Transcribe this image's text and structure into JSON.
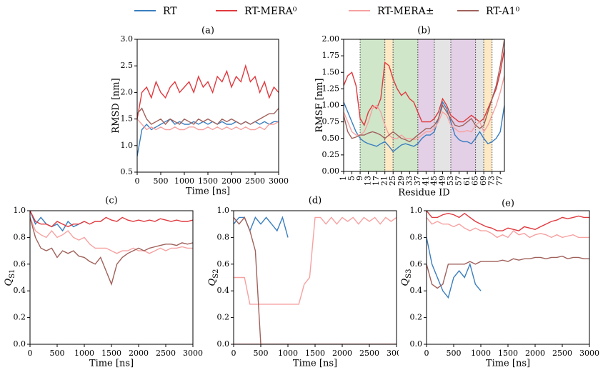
{
  "chart_data": [
    {
      "type": "line",
      "title": "(a)",
      "xlabel": "Time [ns]",
      "ylabel": "RMSD [nm]",
      "x": [
        0,
        100,
        200,
        300,
        400,
        500,
        600,
        700,
        800,
        900,
        1000,
        1100,
        1200,
        1300,
        1400,
        1500,
        1600,
        1700,
        1800,
        1900,
        2000,
        2100,
        2200,
        2300,
        2400,
        2500,
        2600,
        2700,
        2800,
        2900,
        3000
      ],
      "xlim": [
        0,
        3000
      ],
      "xticks": [
        0,
        500,
        1000,
        1500,
        2000,
        2500,
        3000
      ],
      "ylim": [
        0.5,
        3.0
      ],
      "yticks": [
        0.5,
        {
          "value": 1,
          "label": "1.0"
        },
        1.5,
        {
          "value": 2,
          "label": "2.0"
        },
        2.5,
        {
          "value": 3,
          "label": "3.0"
        }
      ],
      "series": [
        {
          "name": "RT",
          "color": "#3a7ebf",
          "values": [
            0.8,
            1.3,
            1.4,
            1.3,
            1.35,
            1.4,
            1.45,
            1.5,
            1.4,
            1.45,
            1.4,
            1.4,
            1.45,
            1.4,
            1.45,
            1.4,
            1.45,
            1.4,
            1.45,
            1.4,
            1.4,
            1.45,
            1.4,
            1.45,
            1.4,
            1.45,
            1.4,
            1.45,
            1.4,
            1.45,
            1.45
          ]
        },
        {
          "name": "RT-MERA⁰",
          "color": "#e0393e",
          "values": [
            1.5,
            2.0,
            2.1,
            1.9,
            2.2,
            2.0,
            1.9,
            2.1,
            2.2,
            2.0,
            2.1,
            2.2,
            2.0,
            2.3,
            2.1,
            2.2,
            2.0,
            2.3,
            2.2,
            2.4,
            2.1,
            2.3,
            2.2,
            2.5,
            2.2,
            2.3,
            2.0,
            2.2,
            1.9,
            2.1,
            2.0
          ]
        },
        {
          "name": "RT-MERA±",
          "color": "#f7a1a1",
          "values": [
            1.5,
            1.4,
            1.3,
            1.35,
            1.3,
            1.35,
            1.3,
            1.3,
            1.35,
            1.3,
            1.3,
            1.35,
            1.35,
            1.3,
            1.3,
            1.35,
            1.3,
            1.35,
            1.3,
            1.35,
            1.3,
            1.35,
            1.3,
            1.35,
            1.3,
            1.3,
            1.35,
            1.3,
            1.4,
            1.4,
            1.45
          ]
        },
        {
          "name": "RT-A1⁰",
          "color": "#a0615b",
          "values": [
            1.6,
            1.7,
            1.5,
            1.4,
            1.45,
            1.5,
            1.4,
            1.5,
            1.45,
            1.4,
            1.5,
            1.45,
            1.4,
            1.5,
            1.45,
            1.5,
            1.45,
            1.4,
            1.5,
            1.45,
            1.5,
            1.45,
            1.4,
            1.45,
            1.4,
            1.45,
            1.5,
            1.55,
            1.6,
            1.6,
            1.7
          ]
        }
      ]
    },
    {
      "type": "line",
      "title": "(b)",
      "xlabel": "Residue ID",
      "ylabel": "RMSF [nm]",
      "x": [
        1,
        3,
        5,
        7,
        9,
        11,
        13,
        15,
        17,
        19,
        21,
        23,
        25,
        27,
        29,
        31,
        33,
        35,
        37,
        39,
        41,
        43,
        45,
        47,
        49,
        51,
        53,
        55,
        57,
        59,
        61,
        63,
        65,
        67,
        69,
        71,
        73,
        75,
        77,
        79
      ],
      "xlim": [
        1,
        79
      ],
      "xticks": [
        1,
        5,
        9,
        13,
        17,
        21,
        25,
        29,
        33,
        37,
        41,
        45,
        49,
        53,
        57,
        61,
        65,
        69,
        73,
        77
      ],
      "rotate_xticks": true,
      "ylim": [
        0,
        2
      ],
      "yticks": [
        {
          "value": 0,
          "label": "0.00"
        },
        0.25,
        {
          "value": 0.5,
          "label": "0.50"
        },
        0.75,
        {
          "value": 1,
          "label": "1.00"
        },
        1.25,
        {
          "value": 1.5,
          "label": "1.50"
        },
        1.75,
        {
          "value": 2,
          "label": "2.00"
        }
      ],
      "bands": [
        {
          "from": 9,
          "to": 21,
          "color": "#cfe6c9"
        },
        {
          "from": 21,
          "to": 25,
          "color": "#fde9c4"
        },
        {
          "from": 25,
          "to": 37,
          "color": "#cfe6c9"
        },
        {
          "from": 37,
          "to": 45,
          "color": "#e3cfe6"
        },
        {
          "from": 45,
          "to": 53,
          "color": "#e4e4e4"
        },
        {
          "from": 53,
          "to": 65,
          "color": "#e3cfe6"
        },
        {
          "from": 65,
          "to": 69,
          "color": "#e4e4e4"
        },
        {
          "from": 69,
          "to": 73,
          "color": "#fde9c4"
        }
      ],
      "series": [
        {
          "color": "#3a7ebf",
          "values": [
            1.05,
            0.9,
            0.75,
            0.6,
            0.5,
            0.45,
            0.42,
            0.4,
            0.38,
            0.42,
            0.45,
            0.38,
            0.3,
            0.35,
            0.4,
            0.42,
            0.4,
            0.38,
            0.42,
            0.5,
            0.55,
            0.55,
            0.6,
            0.8,
            1.05,
            0.95,
            0.75,
            0.55,
            0.48,
            0.45,
            0.45,
            0.42,
            0.5,
            0.6,
            0.5,
            0.42,
            0.45,
            0.5,
            0.6,
            1.0
          ]
        },
        {
          "color": "#e0393e",
          "values": [
            1.3,
            1.45,
            1.5,
            1.3,
            0.8,
            0.7,
            0.9,
            1.0,
            0.95,
            1.1,
            1.65,
            1.6,
            1.4,
            1.25,
            1.15,
            1.2,
            1.1,
            1.05,
            0.9,
            0.75,
            0.75,
            0.75,
            0.8,
            0.9,
            1.1,
            1.0,
            0.85,
            0.8,
            0.75,
            0.75,
            0.8,
            0.85,
            0.8,
            0.75,
            0.8,
            0.95,
            1.1,
            1.25,
            1.5,
            1.85
          ]
        },
        {
          "color": "#f7a1a1",
          "values": [
            0.9,
            0.75,
            0.6,
            0.55,
            0.55,
            0.6,
            0.75,
            0.95,
            1.0,
            0.9,
            0.7,
            0.55,
            0.5,
            0.5,
            0.55,
            0.5,
            0.5,
            0.48,
            0.5,
            0.55,
            0.6,
            0.6,
            0.65,
            0.75,
            0.9,
            0.85,
            0.7,
            0.65,
            0.6,
            0.6,
            0.62,
            0.6,
            0.7,
            0.75,
            0.6,
            0.7,
            0.85,
            1.0,
            1.2,
            1.45
          ]
        },
        {
          "color": "#a0615b",
          "values": [
            0.85,
            0.6,
            0.5,
            0.52,
            0.55,
            0.55,
            0.58,
            0.6,
            0.58,
            0.55,
            0.5,
            0.55,
            0.6,
            0.55,
            0.5,
            0.48,
            0.45,
            0.5,
            0.55,
            0.6,
            0.65,
            0.65,
            0.7,
            0.8,
            1.0,
            0.9,
            0.8,
            0.7,
            0.68,
            0.7,
            0.75,
            0.8,
            0.7,
            0.65,
            0.7,
            0.9,
            1.1,
            1.3,
            1.6,
            2.0
          ]
        }
      ]
    },
    {
      "type": "line",
      "title": "(c)",
      "xlabel": "Time [ns]",
      "ylabel": "Q",
      "ylabel_sub": "S1",
      "x": [
        0,
        100,
        200,
        300,
        400,
        500,
        600,
        700,
        800,
        900,
        1000,
        1100,
        1200,
        1300,
        1400,
        1500,
        1600,
        1700,
        1800,
        1900,
        2000,
        2100,
        2200,
        2300,
        2400,
        2500,
        2600,
        2700,
        2800,
        2900,
        3000
      ],
      "xlim": [
        0,
        3000
      ],
      "xticks": [
        0,
        500,
        1000,
        1500,
        2000,
        2500,
        3000
      ],
      "ylim": [
        0,
        1
      ],
      "yticks": [
        {
          "value": 0,
          "label": "0.0"
        },
        0.2,
        0.4,
        0.6,
        0.8,
        {
          "value": 1,
          "label": "1.0"
        }
      ],
      "series": [
        {
          "color": "#3a7ebf",
          "values": [
            1.0,
            0.9,
            0.95,
            0.9,
            0.88,
            0.9,
            0.85,
            0.92,
            0.88,
            0.9,
            0.92,
            null,
            null,
            null,
            null,
            null,
            null,
            null,
            null,
            null,
            null,
            null,
            null,
            null,
            null,
            null,
            null,
            null,
            null,
            null,
            null
          ]
        },
        {
          "color": "#e0393e",
          "values": [
            1.0,
            0.92,
            0.9,
            0.9,
            0.88,
            0.92,
            0.9,
            0.88,
            0.9,
            0.9,
            0.92,
            0.9,
            0.92,
            0.92,
            0.95,
            0.93,
            0.92,
            0.95,
            0.93,
            0.92,
            0.93,
            0.92,
            0.93,
            0.92,
            0.94,
            0.93,
            0.92,
            0.93,
            0.92,
            0.92,
            0.93
          ]
        },
        {
          "color": "#f7a1a1",
          "values": [
            0.95,
            0.85,
            0.82,
            0.8,
            0.85,
            0.8,
            0.82,
            0.85,
            0.8,
            0.78,
            0.8,
            0.75,
            0.72,
            0.72,
            0.72,
            0.7,
            0.68,
            0.7,
            0.7,
            0.72,
            0.7,
            0.7,
            0.68,
            0.7,
            0.72,
            0.7,
            0.72,
            0.72,
            0.73,
            0.72,
            0.72
          ]
        },
        {
          "color": "#a0615b",
          "values": [
            0.95,
            0.8,
            0.72,
            0.7,
            0.72,
            0.65,
            0.7,
            0.68,
            0.7,
            0.66,
            0.65,
            0.62,
            0.6,
            0.65,
            0.55,
            0.45,
            0.6,
            0.65,
            0.68,
            0.7,
            0.72,
            0.7,
            0.72,
            0.73,
            0.74,
            0.75,
            0.75,
            0.74,
            0.76,
            0.75,
            0.76
          ]
        }
      ]
    },
    {
      "type": "line",
      "title": "(d)",
      "xlabel": "Time [ns]",
      "ylabel": "Q",
      "ylabel_sub": "S2",
      "x": [
        0,
        100,
        200,
        300,
        400,
        500,
        600,
        700,
        800,
        900,
        1000,
        1100,
        1200,
        1300,
        1400,
        1500,
        1600,
        1700,
        1800,
        1900,
        2000,
        2100,
        2200,
        2300,
        2400,
        2500,
        2600,
        2700,
        2800,
        2900,
        3000
      ],
      "xlim": [
        0,
        3000
      ],
      "xticks": [
        0,
        500,
        1000,
        1500,
        2000,
        2500,
        3000
      ],
      "ylim": [
        0,
        1
      ],
      "yticks": [
        {
          "value": 0,
          "label": "0.0"
        },
        0.2,
        0.4,
        0.6,
        0.8,
        {
          "value": 1,
          "label": "1.0"
        }
      ],
      "series": [
        {
          "color": "#3a7ebf",
          "values": [
            0.9,
            0.95,
            0.95,
            0.85,
            0.95,
            0.9,
            0.95,
            0.9,
            0.85,
            0.95,
            0.8,
            null,
            null,
            null,
            null,
            null,
            null,
            null,
            null,
            null,
            null,
            null,
            null,
            null,
            null,
            null,
            null,
            null,
            null,
            null,
            null
          ]
        },
        {
          "color": "#e0393e",
          "values": [
            0,
            0,
            0,
            0,
            0,
            0,
            0,
            0,
            0,
            0,
            0,
            0,
            0,
            0,
            0,
            0,
            0,
            0,
            0,
            0,
            0,
            0,
            0,
            0,
            0,
            0,
            0,
            0,
            0,
            0,
            0
          ]
        },
        {
          "color": "#f7a1a1",
          "values": [
            0.5,
            0.5,
            0.5,
            0.3,
            0.3,
            0.3,
            0.3,
            0.3,
            0.3,
            0.3,
            0.3,
            0.3,
            0.3,
            0.45,
            0.5,
            0.95,
            0.95,
            0.9,
            0.95,
            0.9,
            0.95,
            0.92,
            0.95,
            0.9,
            0.95,
            0.92,
            0.95,
            0.9,
            0.95,
            0.92,
            0.95
          ]
        },
        {
          "color": "#a0615b",
          "values": [
            0.95,
            0.9,
            0.95,
            0.85,
            0.7,
            0,
            0,
            0,
            0,
            0,
            0,
            0,
            0,
            0,
            0,
            0,
            0,
            0,
            0,
            0,
            0,
            0,
            0,
            0,
            0,
            0,
            0,
            0,
            0,
            0,
            0
          ]
        }
      ]
    },
    {
      "type": "line",
      "title": "(e)",
      "xlabel": "Time [ns]",
      "ylabel": "Q",
      "ylabel_sub": "S3",
      "x": [
        0,
        100,
        200,
        300,
        400,
        500,
        600,
        700,
        800,
        900,
        1000,
        1100,
        1200,
        1300,
        1400,
        1500,
        1600,
        1700,
        1800,
        1900,
        2000,
        2100,
        2200,
        2300,
        2400,
        2500,
        2600,
        2700,
        2800,
        2900,
        3000
      ],
      "xlim": [
        0,
        3000
      ],
      "xticks": [
        0,
        500,
        1000,
        1500,
        2000,
        2500,
        3000
      ],
      "ylim": [
        0,
        1
      ],
      "yticks": [
        {
          "value": 0,
          "label": "0.0"
        },
        0.2,
        0.4,
        0.6,
        0.8,
        {
          "value": 1,
          "label": "1.0"
        }
      ],
      "series": [
        {
          "color": "#3a7ebf",
          "values": [
            0.8,
            0.6,
            0.5,
            0.4,
            0.35,
            0.5,
            0.55,
            0.5,
            0.6,
            0.45,
            0.4,
            null,
            null,
            null,
            null,
            null,
            null,
            null,
            null,
            null,
            null,
            null,
            null,
            null,
            null,
            null,
            null,
            null,
            null,
            null,
            null
          ]
        },
        {
          "color": "#e0393e",
          "values": [
            1.0,
            0.95,
            0.95,
            0.97,
            0.98,
            0.97,
            0.95,
            0.98,
            0.95,
            0.92,
            0.9,
            0.88,
            0.87,
            0.85,
            0.85,
            0.87,
            0.86,
            0.85,
            0.88,
            0.87,
            0.86,
            0.88,
            0.9,
            0.92,
            0.93,
            0.95,
            0.94,
            0.95,
            0.96,
            0.95,
            0.95
          ]
        },
        {
          "color": "#f7a1a1",
          "values": [
            0.95,
            0.9,
            0.92,
            0.9,
            0.9,
            0.88,
            0.9,
            0.87,
            0.85,
            0.87,
            0.85,
            0.85,
            0.83,
            0.8,
            0.82,
            0.8,
            0.85,
            0.82,
            0.83,
            0.8,
            0.82,
            0.83,
            0.82,
            0.8,
            0.82,
            0.8,
            0.81,
            0.82,
            0.8,
            0.8,
            0.8
          ]
        },
        {
          "color": "#a0615b",
          "values": [
            0.6,
            0.45,
            0.42,
            0.45,
            0.6,
            0.6,
            0.6,
            0.6,
            0.62,
            0.6,
            0.62,
            0.62,
            0.62,
            0.62,
            0.63,
            0.62,
            0.64,
            0.63,
            0.64,
            0.64,
            0.65,
            0.65,
            0.64,
            0.65,
            0.65,
            0.66,
            0.64,
            0.65,
            0.65,
            0.64,
            0.64
          ]
        }
      ]
    }
  ]
}
